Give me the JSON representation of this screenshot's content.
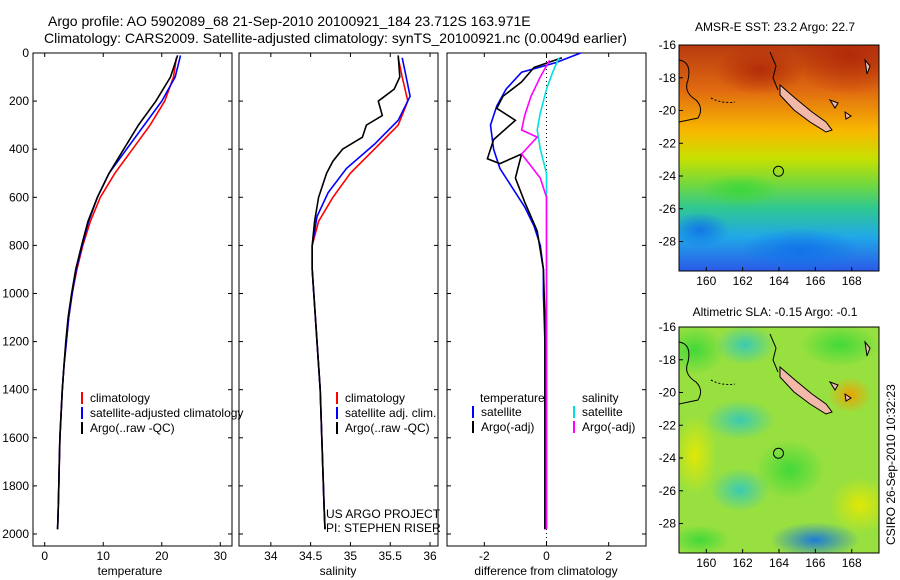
{
  "header": {
    "line1": "Argo profile: AO 5902089_68 21-Sep-2010 20100921_184 23.712S 163.971E",
    "line2": "Climatology: CARS2009. Satellite-adjusted climatology: synTS_20100921.nc (0.0049d earlier)"
  },
  "footer": {
    "credit": "CSIRO 26-Sep-2010 10:32:23"
  },
  "colors": {
    "climatology": "#ff0000",
    "satellite": "#0000ff",
    "argo": "#000000",
    "salinity_sat": "#00e0e0",
    "salinity_argo": "#ff00ff"
  },
  "chart_data": [
    {
      "type": "line",
      "id": "temperature",
      "xlabel": "temperature",
      "xlim": [
        -2,
        32
      ],
      "ylim": [
        2050,
        0
      ],
      "xticks": [
        0,
        10,
        20,
        30
      ],
      "yticks": [
        0,
        200,
        400,
        600,
        800,
        1000,
        1200,
        1400,
        1600,
        1800,
        2000
      ],
      "legend": [
        "climatology",
        "satellite-adjusted climatology",
        "Argo(..raw -QC)"
      ],
      "series": [
        {
          "name": "climatology",
          "color": "#ff0000",
          "points": [
            [
              22.5,
              20
            ],
            [
              22,
              100
            ],
            [
              20.5,
              200
            ],
            [
              18,
              300
            ],
            [
              15,
              400
            ],
            [
              12,
              500
            ],
            [
              9.5,
              600
            ],
            [
              7.8,
              700
            ],
            [
              6.5,
              800
            ],
            [
              5.5,
              900
            ],
            [
              4.7,
              1000
            ],
            [
              4.1,
              1100
            ],
            [
              3.7,
              1200
            ],
            [
              3.3,
              1300
            ],
            [
              3.0,
              1400
            ],
            [
              2.8,
              1500
            ],
            [
              2.6,
              1600
            ],
            [
              2.5,
              1700
            ],
            [
              2.4,
              1800
            ],
            [
              2.3,
              1900
            ],
            [
              2.2,
              1980
            ]
          ]
        },
        {
          "name": "satellite-adjusted climatology",
          "color": "#0000ff",
          "points": [
            [
              23.2,
              10
            ],
            [
              22.3,
              100
            ],
            [
              20,
              200
            ],
            [
              17,
              300
            ],
            [
              14,
              400
            ],
            [
              11,
              500
            ],
            [
              9,
              600
            ],
            [
              7.5,
              700
            ],
            [
              6.4,
              800
            ],
            [
              5.4,
              900
            ],
            [
              4.7,
              1000
            ],
            [
              4.1,
              1100
            ],
            [
              3.7,
              1200
            ],
            [
              3.3,
              1300
            ],
            [
              3.0,
              1400
            ],
            [
              2.8,
              1500
            ],
            [
              2.6,
              1600
            ],
            [
              2.5,
              1700
            ],
            [
              2.4,
              1800
            ],
            [
              2.3,
              1900
            ],
            [
              2.2,
              1980
            ]
          ]
        },
        {
          "name": "Argo(..raw -QC)",
          "color": "#000000",
          "points": [
            [
              22.7,
              10
            ],
            [
              21.5,
              100
            ],
            [
              19,
              200
            ],
            [
              16,
              300
            ],
            [
              13.5,
              400
            ],
            [
              11,
              500
            ],
            [
              9,
              600
            ],
            [
              7.4,
              700
            ],
            [
              6.3,
              800
            ],
            [
              5.3,
              900
            ],
            [
              4.6,
              1000
            ],
            [
              4.0,
              1100
            ],
            [
              3.6,
              1200
            ],
            [
              3.3,
              1300
            ],
            [
              3.0,
              1400
            ],
            [
              2.8,
              1500
            ],
            [
              2.6,
              1600
            ],
            [
              2.5,
              1700
            ],
            [
              2.4,
              1800
            ],
            [
              2.3,
              1900
            ],
            [
              2.2,
              1980
            ]
          ]
        }
      ]
    },
    {
      "type": "line",
      "id": "salinity",
      "xlabel": "salinity",
      "xlim": [
        33.6,
        36.1
      ],
      "ylim": [
        2050,
        0
      ],
      "xticks": [
        34,
        34.5,
        35,
        35.5,
        36
      ],
      "legend": [
        "climatology",
        "satellite adj. clim.",
        "Argo(..raw -QC)"
      ],
      "annotations": [
        "US ARGO PROJECT",
        "PI: STEPHEN RISER"
      ],
      "series": [
        {
          "name": "climatology",
          "color": "#ff0000",
          "points": [
            [
              35.6,
              20
            ],
            [
              35.65,
              100
            ],
            [
              35.72,
              200
            ],
            [
              35.6,
              300
            ],
            [
              35.3,
              400
            ],
            [
              35,
              500
            ],
            [
              34.78,
              600
            ],
            [
              34.6,
              700
            ],
            [
              34.52,
              800
            ],
            [
              34.52,
              900
            ],
            [
              34.54,
              1000
            ],
            [
              34.56,
              1100
            ],
            [
              34.58,
              1200
            ],
            [
              34.6,
              1300
            ],
            [
              34.62,
              1400
            ],
            [
              34.63,
              1500
            ],
            [
              34.64,
              1600
            ],
            [
              34.65,
              1700
            ],
            [
              34.66,
              1800
            ],
            [
              34.67,
              1900
            ],
            [
              34.68,
              1980
            ]
          ]
        },
        {
          "name": "satellite adj. clim.",
          "color": "#0000ff",
          "points": [
            [
              35.65,
              20
            ],
            [
              35.7,
              100
            ],
            [
              35.75,
              180
            ],
            [
              35.6,
              280
            ],
            [
              35.3,
              380
            ],
            [
              34.95,
              480
            ],
            [
              34.72,
              580
            ],
            [
              34.58,
              680
            ],
            [
              34.52,
              800
            ],
            [
              34.52,
              900
            ],
            [
              34.54,
              1000
            ],
            [
              34.56,
              1100
            ],
            [
              34.58,
              1200
            ],
            [
              34.6,
              1300
            ],
            [
              34.62,
              1400
            ],
            [
              34.63,
              1500
            ],
            [
              34.64,
              1600
            ],
            [
              34.65,
              1700
            ],
            [
              34.66,
              1800
            ],
            [
              34.67,
              1900
            ],
            [
              34.68,
              1980
            ]
          ]
        },
        {
          "name": "Argo(..raw -QC)",
          "color": "#000000",
          "points": [
            [
              35.6,
              10
            ],
            [
              35.62,
              100
            ],
            [
              35.55,
              150
            ],
            [
              35.35,
              200
            ],
            [
              35.4,
              260
            ],
            [
              35.2,
              300
            ],
            [
              35.15,
              350
            ],
            [
              34.9,
              400
            ],
            [
              34.78,
              450
            ],
            [
              34.7,
              500
            ],
            [
              34.6,
              600
            ],
            [
              34.55,
              700
            ],
            [
              34.52,
              800
            ],
            [
              34.52,
              900
            ],
            [
              34.54,
              1000
            ],
            [
              34.56,
              1100
            ],
            [
              34.58,
              1200
            ],
            [
              34.6,
              1300
            ],
            [
              34.62,
              1400
            ],
            [
              34.63,
              1500
            ],
            [
              34.64,
              1600
            ],
            [
              34.65,
              1700
            ],
            [
              34.66,
              1800
            ],
            [
              34.67,
              1900
            ],
            [
              34.68,
              1980
            ]
          ]
        }
      ]
    },
    {
      "type": "line",
      "id": "difference",
      "xlabel": "difference from climatology",
      "xlim": [
        -3.2,
        3.2
      ],
      "ylim": [
        2050,
        0
      ],
      "xticks": [
        -2,
        0,
        2
      ],
      "legend_temperature": [
        "temperature",
        "satellite",
        "Argo(-adj)"
      ],
      "legend_salinity": [
        "salinity",
        "satellite",
        "Argo(-adj)"
      ],
      "series": [
        {
          "name": "temperature satellite",
          "color": "#0000ff",
          "points": [
            [
              1.1,
              0
            ],
            [
              0.3,
              40
            ],
            [
              -0.8,
              80
            ],
            [
              -1.3,
              150
            ],
            [
              -1.6,
              220
            ],
            [
              -1.8,
              300
            ],
            [
              -1.7,
              400
            ],
            [
              -1.5,
              480
            ],
            [
              -1.1,
              560
            ],
            [
              -0.7,
              640
            ],
            [
              -0.4,
              720
            ],
            [
              -0.2,
              800
            ],
            [
              -0.1,
              900
            ],
            [
              -0.1,
              1000
            ],
            [
              -0.05,
              1200
            ],
            [
              -0.05,
              1500
            ],
            [
              -0.05,
              1800
            ],
            [
              -0.05,
              1980
            ]
          ]
        },
        {
          "name": "temperature Argo(-adj)",
          "color": "#000000",
          "points": [
            [
              0.5,
              20
            ],
            [
              -0.4,
              60
            ],
            [
              -0.8,
              120
            ],
            [
              -1.4,
              180
            ],
            [
              -1.6,
              230
            ],
            [
              -1.0,
              280
            ],
            [
              -1.7,
              360
            ],
            [
              -1.9,
              440
            ],
            [
              -1.5,
              460
            ],
            [
              -0.8,
              420
            ],
            [
              -1.0,
              520
            ],
            [
              -0.7,
              620
            ],
            [
              -0.3,
              740
            ],
            [
              -0.1,
              900
            ],
            [
              -0.05,
              1100
            ],
            [
              -0.05,
              1400
            ],
            [
              -0.05,
              1700
            ],
            [
              -0.05,
              1980
            ]
          ]
        },
        {
          "name": "salinity satellite",
          "color": "#00e0e0",
          "points": [
            [
              0.4,
              20
            ],
            [
              0.2,
              80
            ],
            [
              0,
              150
            ],
            [
              -0.2,
              250
            ],
            [
              -0.3,
              320
            ],
            [
              -0.2,
              400
            ],
            [
              0,
              500
            ],
            [
              0,
              700
            ],
            [
              0,
              1000
            ],
            [
              0,
              1300
            ],
            [
              0,
              1600
            ],
            [
              0,
              1980
            ]
          ]
        },
        {
          "name": "salinity Argo(-adj)",
          "color": "#ff00ff",
          "points": [
            [
              0.1,
              30
            ],
            [
              -0.2,
              100
            ],
            [
              -0.5,
              180
            ],
            [
              -0.7,
              260
            ],
            [
              -0.8,
              320
            ],
            [
              -0.3,
              350
            ],
            [
              -0.8,
              420
            ],
            [
              -0.5,
              470
            ],
            [
              -0.2,
              520
            ],
            [
              0,
              600
            ],
            [
              0,
              900
            ],
            [
              0,
              1200
            ],
            [
              0,
              1500
            ],
            [
              0,
              1980
            ]
          ]
        }
      ]
    }
  ],
  "maps": [
    {
      "id": "sst",
      "title": "AMSR-E SST: 23.2 Argo: 22.7",
      "xticks": [
        160,
        162,
        164,
        166,
        168
      ],
      "yticks": [
        -16,
        -18,
        -20,
        -22,
        -24,
        -26,
        -28
      ],
      "xlim": [
        158.5,
        169.5
      ],
      "ylim": [
        -29.8,
        -16
      ]
    },
    {
      "id": "sla",
      "title": "Altimetric SLA: -0.15 Argo: -0.1",
      "xticks": [
        160,
        162,
        164,
        166,
        168
      ],
      "yticks": [
        -16,
        -18,
        -20,
        -22,
        -24,
        -26,
        -28
      ],
      "xlim": [
        158.5,
        169.5
      ],
      "ylim": [
        -29.8,
        -16
      ]
    }
  ],
  "float_position": {
    "lat": -23.712,
    "lon": 163.971
  }
}
